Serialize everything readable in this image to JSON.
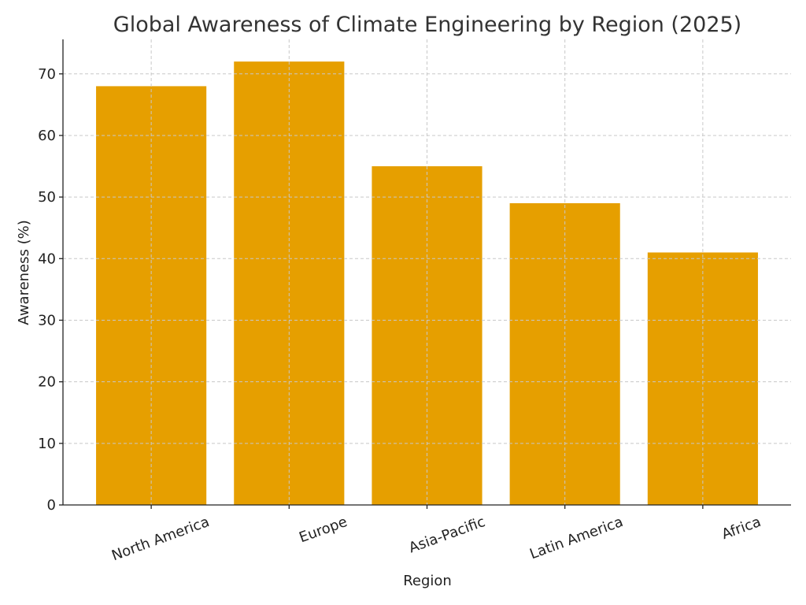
{
  "chart_data": {
    "type": "bar",
    "title": "Global Awareness of Climate Engineering by Region (2025)",
    "x_label": "Region",
    "y_label": "Awareness (%)",
    "categories": [
      "North America",
      "Europe",
      "Asia-Pacific",
      "Latin America",
      "Africa"
    ],
    "values": [
      68,
      72,
      55,
      49,
      41
    ],
    "color": "#e69f00",
    "ylim": [
      0,
      75.6
    ],
    "yticks": [
      0,
      10,
      20,
      30,
      40,
      50,
      60,
      70
    ],
    "grid": true
  }
}
